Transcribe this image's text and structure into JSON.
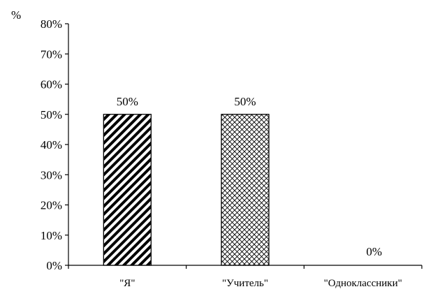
{
  "chart_data": {
    "type": "bar",
    "title": "",
    "xlabel": "",
    "ylabel": "%",
    "ylim": [
      0,
      80
    ],
    "yticks": [
      0,
      10,
      20,
      30,
      40,
      50,
      60,
      70,
      80
    ],
    "ytick_suffix": "%",
    "grid": false,
    "legend": "none",
    "categories": [
      "\"Я\"",
      "\"Учитель\"",
      "\"Одноклассники\""
    ],
    "values": [
      50,
      50,
      0
    ],
    "data_labels": [
      "50%",
      "50%",
      "0%"
    ],
    "bar_patterns": [
      "diagonal-stripes",
      "crosshatch",
      "none"
    ],
    "colors": {
      "axis": "#000000",
      "bar_fill": "#ffffff",
      "bar_stroke": "#000000"
    }
  }
}
